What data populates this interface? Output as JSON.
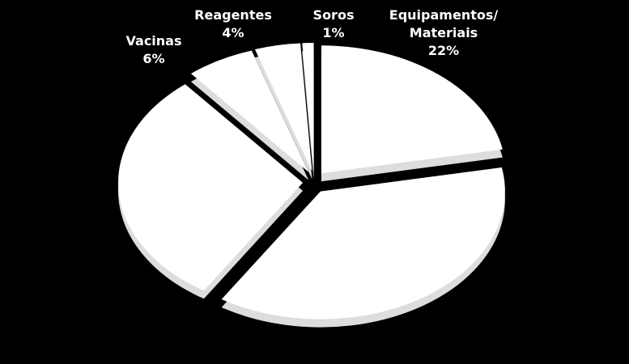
{
  "chart_data": {
    "type": "pie",
    "categories": [
      "Equipamentos/\nMateriais",
      null,
      null,
      "Vacinas",
      "Reagentes",
      "Soros"
    ],
    "values": [
      22,
      37,
      30,
      6,
      4,
      1
    ],
    "value_labels": [
      "22%",
      null,
      null,
      "6%",
      "4%",
      "1%"
    ],
    "color": "#ffffff"
  }
}
